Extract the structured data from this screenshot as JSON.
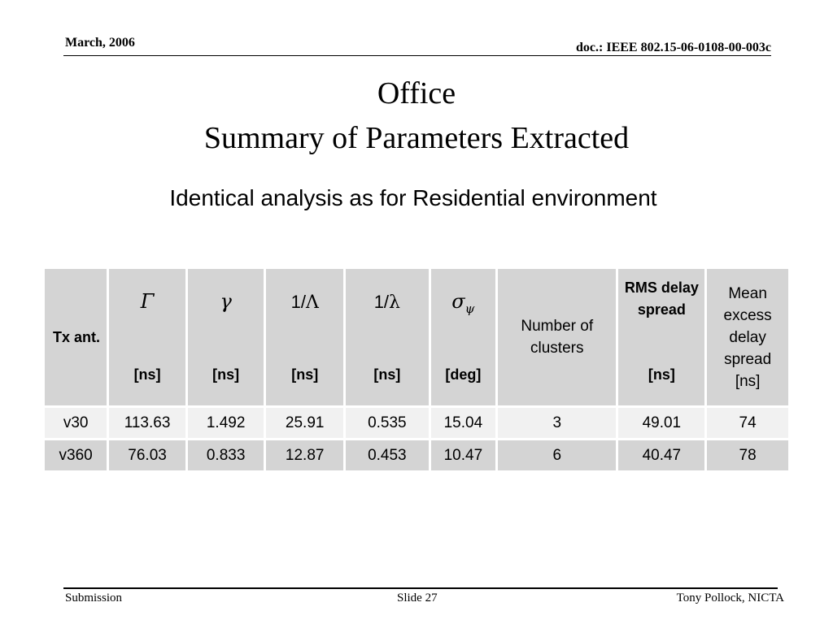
{
  "header": {
    "date": "March, 2006",
    "doc_id": "doc.: IEEE 802.15-06-0108-00-003c"
  },
  "title": {
    "line1": "Office",
    "line2": "Summary of Parameters Extracted"
  },
  "subtitle": "Identical analysis as for Residential environment",
  "table": {
    "headers": {
      "tx": "Tx ant.",
      "gamma_big": {
        "symbol": "Γ",
        "unit": "[ns]"
      },
      "gamma_small": {
        "symbol": "γ",
        "unit": "[ns]"
      },
      "inv_lambda_big": {
        "prefix": "1/",
        "symbol": "Λ",
        "unit": "[ns]"
      },
      "inv_lambda_small": {
        "prefix": "1/",
        "symbol": "λ",
        "unit": "[ns]"
      },
      "sigma_psi": {
        "symbol": "σ",
        "subscript": "ψ",
        "unit": "[deg]"
      },
      "clusters": "Number of clusters",
      "rms": {
        "label": "RMS delay spread",
        "unit": "[ns]"
      },
      "mean_excess": "Mean excess delay spread [ns]"
    },
    "rows": [
      [
        "v30",
        "113.63",
        "1.492",
        "25.91",
        "0.535",
        "15.04",
        "3",
        "49.01",
        "74"
      ],
      [
        "v360",
        "76.03",
        "0.833",
        "12.87",
        "0.453",
        "10.47",
        "6",
        "40.47",
        "78"
      ]
    ]
  },
  "footer": {
    "left": "Submission",
    "center": "Slide 27",
    "right": "Tony Pollock, NICTA"
  }
}
